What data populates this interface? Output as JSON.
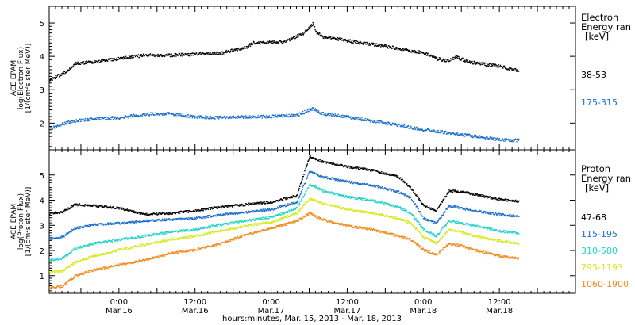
{
  "chart_data": {
    "type": "scatter",
    "xlabel": "hours:minutes, Mar. 15, 2013 - Mar. 18, 2013",
    "x_ticks": [
      {
        "t": 24,
        "top": "0:00",
        "bottom": "Mar.16"
      },
      {
        "t": 36,
        "top": "12:00",
        "bottom": "Mar.16"
      },
      {
        "t": 48,
        "top": "0:00",
        "bottom": "Mar.17"
      },
      {
        "t": 60,
        "top": "12:00",
        "bottom": "Mar.17"
      },
      {
        "t": 72,
        "top": "0:00",
        "bottom": "Mar.18"
      },
      {
        "t": 84,
        "top": "12:00",
        "bottom": "Mar.18"
      }
    ],
    "xlim_hours_from_mar15": [
      13,
      96
    ],
    "panels": [
      {
        "ylabel_lines": [
          "ACE EPAM",
          "log(Electron Flux)",
          "[1/(cm²s ster MeV)]"
        ],
        "ylim": [
          1.2,
          5.5
        ],
        "y_ticks": [
          2,
          3,
          4,
          5
        ],
        "legend_title": [
          "Electron",
          "Energy ran",
          "[keV]"
        ],
        "series": [
          {
            "name": "38-53",
            "color": "#000000",
            "x": [
              13,
              16,
              17,
              20,
              24,
              28,
              32,
              36,
              40,
              44,
              45,
              50,
              53,
              54.5,
              55,
              56,
              58,
              62,
              66,
              70,
              72,
              74,
              76,
              77,
              79,
              84,
              87
            ],
            "y": [
              3.3,
              3.6,
              3.8,
              3.85,
              3.95,
              4.05,
              4.05,
              4.08,
              4.12,
              4.28,
              4.42,
              4.45,
              4.7,
              5.0,
              4.75,
              4.6,
              4.55,
              4.42,
              4.32,
              4.18,
              4.12,
              3.95,
              3.88,
              4.0,
              3.85,
              3.72,
              3.58
            ]
          },
          {
            "name": "175-315",
            "color": "#1a6ecb",
            "x": [
              13,
              16,
              20,
              24,
              28,
              32,
              36,
              40,
              44,
              48,
              52,
              54.5,
              56,
              60,
              64,
              68,
              72,
              76,
              80,
              84,
              87
            ],
            "y": [
              1.85,
              2.05,
              2.15,
              2.18,
              2.28,
              2.3,
              2.2,
              2.18,
              2.2,
              2.22,
              2.25,
              2.45,
              2.3,
              2.2,
              2.08,
              1.95,
              1.82,
              1.72,
              1.62,
              1.52,
              1.5
            ]
          }
        ]
      },
      {
        "ylabel_lines": [
          "ACE EPAM",
          "log(Proton Flux)",
          "[1/(cm²s ster MeV)]"
        ],
        "ylim": [
          0.3,
          6.0
        ],
        "y_ticks": [
          1,
          2,
          3,
          4,
          5
        ],
        "legend_title": [
          "Proton",
          "Energy ran",
          "[keV]"
        ],
        "series": [
          {
            "name": "47-68",
            "color": "#000000",
            "x": [
              13,
              15,
              17,
              20,
              24,
              28,
              32,
              36,
              40,
              44,
              48,
              52,
              54,
              56,
              60,
              64,
              68,
              70,
              72,
              74,
              76,
              78,
              80,
              84,
              87
            ],
            "y": [
              3.5,
              3.55,
              3.85,
              3.8,
              3.7,
              3.45,
              3.5,
              3.6,
              3.75,
              3.85,
              3.95,
              4.2,
              5.75,
              5.55,
              5.35,
              5.2,
              4.95,
              4.5,
              3.8,
              3.6,
              4.4,
              4.35,
              4.25,
              4.05,
              3.98
            ]
          },
          {
            "name": "115-195",
            "color": "#1a6ecb",
            "x": [
              13,
              15,
              17,
              20,
              24,
              28,
              32,
              36,
              40,
              44,
              48,
              52,
              54,
              56,
              60,
              64,
              68,
              70,
              72,
              74,
              76,
              78,
              80,
              84,
              87
            ],
            "y": [
              2.5,
              2.55,
              2.9,
              3.05,
              3.1,
              3.2,
              3.25,
              3.3,
              3.45,
              3.55,
              3.65,
              3.95,
              5.15,
              4.95,
              4.75,
              4.6,
              4.35,
              4.1,
              3.3,
              3.1,
              3.8,
              3.7,
              3.6,
              3.45,
              3.38
            ]
          },
          {
            "name": "310-580",
            "color": "#22d3c5",
            "x": [
              13,
              15,
              17,
              20,
              24,
              28,
              32,
              36,
              40,
              44,
              48,
              52,
              54,
              56,
              60,
              64,
              68,
              70,
              72,
              74,
              76,
              78,
              80,
              84,
              87
            ],
            "y": [
              1.65,
              1.7,
              2.1,
              2.3,
              2.45,
              2.6,
              2.75,
              2.85,
              3.05,
              3.2,
              3.35,
              3.7,
              4.65,
              4.4,
              4.15,
              4.0,
              3.75,
              3.5,
              2.85,
              2.6,
              3.2,
              3.1,
              3.0,
              2.8,
              2.7
            ]
          },
          {
            "name": "795-1193",
            "color": "#d8e81e",
            "x": [
              13,
              15,
              17,
              20,
              24,
              28,
              32,
              36,
              40,
              44,
              48,
              52,
              54,
              56,
              60,
              64,
              68,
              70,
              72,
              74,
              76,
              78,
              80,
              84,
              87
            ],
            "y": [
              1.15,
              1.2,
              1.55,
              1.8,
              2.05,
              2.25,
              2.45,
              2.6,
              2.8,
              3.0,
              3.15,
              3.5,
              4.1,
              3.9,
              3.65,
              3.5,
              3.3,
              3.1,
              2.55,
              2.3,
              2.85,
              2.75,
              2.6,
              2.4,
              2.3
            ]
          },
          {
            "name": "1060-1900",
            "color": "#f08a1c",
            "x": [
              13,
              15,
              17,
              20,
              24,
              28,
              32,
              36,
              40,
              44,
              48,
              52,
              54,
              56,
              60,
              64,
              68,
              70,
              72,
              74,
              76,
              78,
              80,
              84,
              87
            ],
            "y": [
              0.55,
              0.6,
              1.0,
              1.25,
              1.45,
              1.65,
              1.9,
              2.05,
              2.3,
              2.65,
              2.9,
              3.2,
              3.5,
              3.25,
              3.0,
              2.85,
              2.6,
              2.45,
              2.05,
              1.85,
              2.3,
              2.2,
              2.05,
              1.8,
              1.7
            ]
          }
        ]
      }
    ]
  }
}
